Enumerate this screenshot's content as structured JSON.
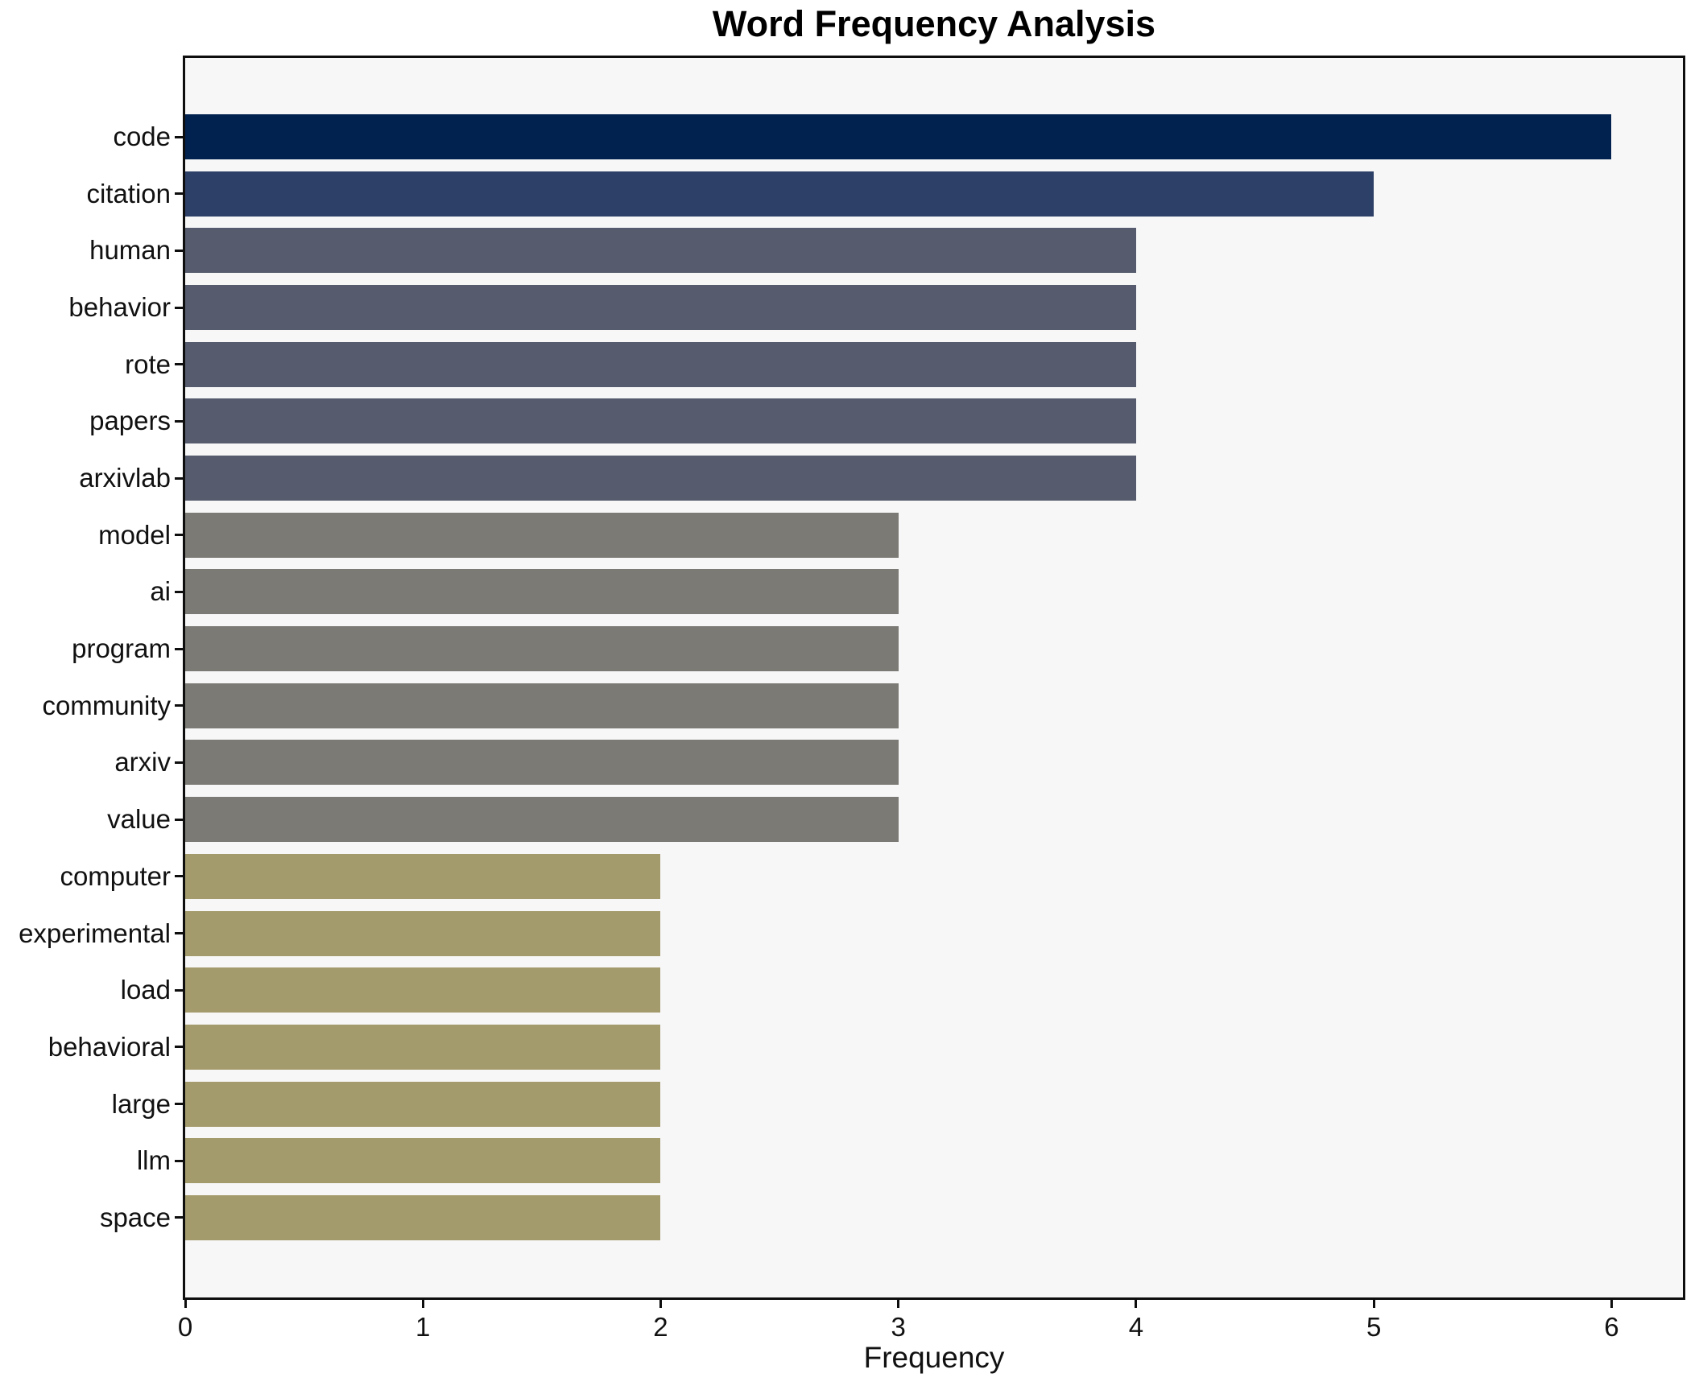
{
  "chart_data": {
    "type": "bar",
    "orientation": "horizontal",
    "title": "Word Frequency Analysis",
    "xlabel": "Frequency",
    "ylabel": "",
    "categories": [
      "code",
      "citation",
      "human",
      "behavior",
      "rote",
      "papers",
      "arxivlab",
      "model",
      "ai",
      "program",
      "community",
      "arxiv",
      "value",
      "computer",
      "experimental",
      "load",
      "behavioral",
      "large",
      "llm",
      "space"
    ],
    "values": [
      6,
      5,
      4,
      4,
      4,
      4,
      4,
      3,
      3,
      3,
      3,
      3,
      3,
      2,
      2,
      2,
      2,
      2,
      2,
      2
    ],
    "bar_colors": [
      "#01224e",
      "#2d4068",
      "#565c6d",
      "#565c6d",
      "#565c6d",
      "#565c6d",
      "#565c6d",
      "#7b7a74",
      "#7b7a74",
      "#7b7a74",
      "#7b7a74",
      "#7b7a74",
      "#7b7a74",
      "#a49b6c",
      "#a49b6c",
      "#a49b6c",
      "#a49b6c",
      "#a49b6c",
      "#a49b6c",
      "#a49b6c"
    ],
    "x_ticks": [
      "0",
      "1",
      "2",
      "3",
      "4",
      "5",
      "6"
    ],
    "x_tick_values": [
      0,
      1,
      2,
      3,
      4,
      5,
      6
    ],
    "xlim": [
      0,
      6.3
    ],
    "grid": false,
    "legend": null,
    "colors": {
      "plot_bg": "#f7f7f8",
      "figure_bg": "#ffffff",
      "spine": "#0e0e0e",
      "tick_text": "#111111",
      "title_text": "#000000"
    }
  }
}
